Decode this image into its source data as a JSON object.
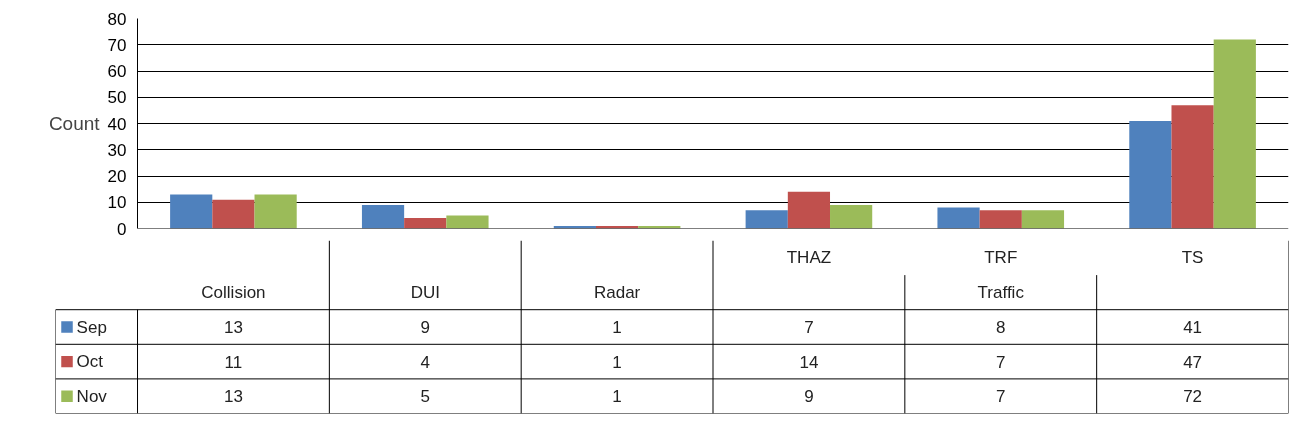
{
  "chart_data": {
    "type": "bar",
    "ylabel": "Count",
    "categories": [
      "Collision",
      "DUI",
      "Radar",
      "THAZ",
      "TRF",
      "TS"
    ],
    "annotations": [
      "Traffic"
    ],
    "series": [
      {
        "name": "Sep",
        "color": "#4f81bd",
        "values": [
          13,
          9,
          1,
          7,
          8,
          41
        ]
      },
      {
        "name": "Oct",
        "color": "#c0504d",
        "values": [
          11,
          4,
          1,
          14,
          7,
          47
        ]
      },
      {
        "name": "Nov",
        "color": "#9bbb59",
        "values": [
          13,
          5,
          1,
          9,
          7,
          72
        ]
      }
    ],
    "ylim": [
      0,
      80
    ],
    "yticks": [
      0,
      10,
      20,
      30,
      40,
      50,
      60,
      70,
      80
    ],
    "grid": "y",
    "legend": "bottom left",
    "data_labels": true
  }
}
